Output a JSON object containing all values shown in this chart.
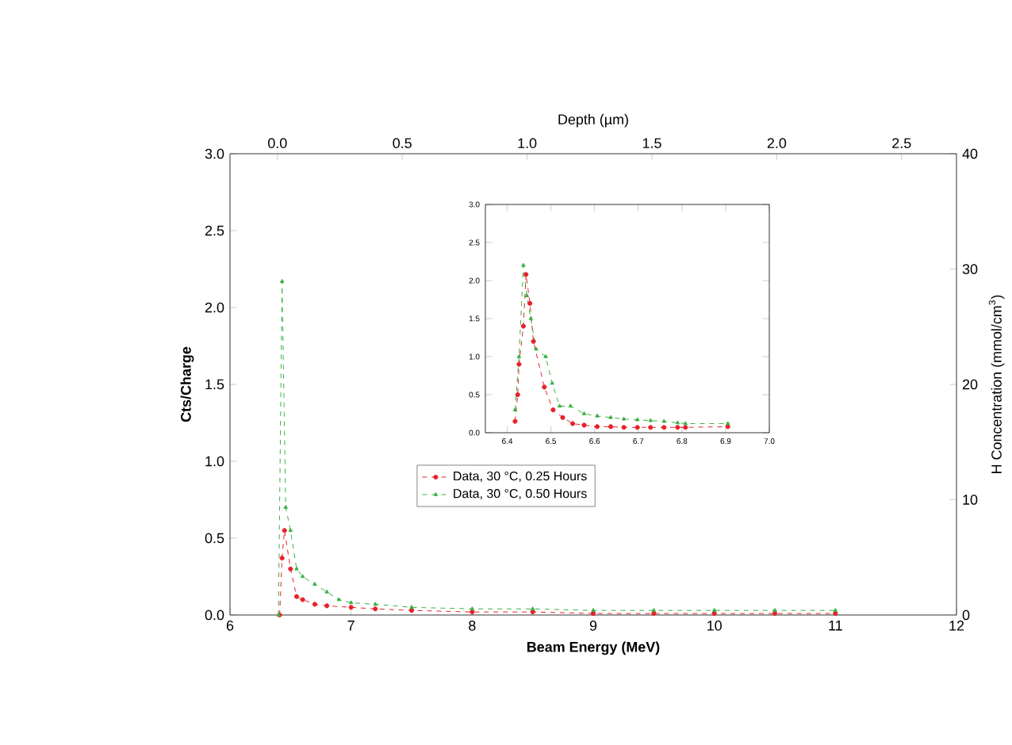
{
  "chart_data": [
    {
      "type": "line",
      "xlabel": "Beam Energy (MeV)",
      "ylabel": "Cts/Charge",
      "y2label": "H Concentration (mmol/cm$^{3}$)",
      "x2label": "Depth (µm)",
      "xlim": [
        6,
        12
      ],
      "xticks": [
        6,
        7,
        8,
        9,
        10,
        11,
        12
      ],
      "ylim": [
        0,
        3
      ],
      "yticks": [
        {
          "value": 0,
          "label": "0.0"
        },
        {
          "value": 0.5,
          "label": "0.5"
        },
        {
          "value": 1,
          "label": "1.0"
        },
        {
          "value": 1.5,
          "label": "1.5"
        },
        {
          "value": 2,
          "label": "2.0"
        },
        {
          "value": 2.5,
          "label": "2.5"
        },
        {
          "value": 3,
          "label": "3.0"
        }
      ],
      "y2lim": [
        0,
        40
      ],
      "y2ticks": [
        0,
        10,
        20,
        30,
        40
      ],
      "x2lim": [
        -0.19,
        2.72
      ],
      "x2ticks": [
        {
          "value": 0,
          "label": "0.0"
        },
        {
          "value": 0.5,
          "label": "0.5"
        },
        {
          "value": 1,
          "label": "1.0"
        },
        {
          "value": 1.5,
          "label": "1.5"
        },
        {
          "value": 2,
          "label": "2.0"
        },
        {
          "value": 2.5,
          "label": "2.5"
        }
      ],
      "legend": "center",
      "line_style": "dashed",
      "series": [
        {
          "name": "Data, 30 °C, 0.25 Hours",
          "color": "#e8202a",
          "marker": "circle",
          "x": [
            6.41,
            6.43,
            6.45,
            6.5,
            6.55,
            6.6,
            6.7,
            6.8,
            7.0,
            7.2,
            7.5,
            8.0,
            8.5,
            9.0,
            9.5,
            10.0,
            10.5,
            11.0
          ],
          "values": [
            0.0,
            0.37,
            0.55,
            0.3,
            0.12,
            0.1,
            0.07,
            0.06,
            0.05,
            0.04,
            0.03,
            0.02,
            0.02,
            0.01,
            0.01,
            0.01,
            0.01,
            0.01
          ]
        },
        {
          "name": "Data, 30 °C, 0.50 Hours",
          "color": "#3cb043",
          "marker": "triangle",
          "x": [
            6.4,
            6.43,
            6.46,
            6.5,
            6.55,
            6.6,
            6.7,
            6.8,
            6.9,
            7.0,
            7.2,
            7.5,
            8.0,
            8.5,
            9.0,
            9.5,
            10.0,
            10.5,
            11.0
          ],
          "values": [
            0.0,
            2.17,
            0.7,
            0.55,
            0.3,
            0.25,
            0.2,
            0.15,
            0.1,
            0.08,
            0.07,
            0.05,
            0.04,
            0.04,
            0.03,
            0.03,
            0.03,
            0.03,
            0.03
          ]
        }
      ]
    },
    {
      "type": "line",
      "xlim": [
        6.35,
        7.0
      ],
      "xticks": [
        6.4,
        6.5,
        6.6,
        6.7,
        6.8,
        6.9,
        {
          "value": 7.0,
          "label": "7.0"
        }
      ],
      "ylim": [
        0,
        3
      ],
      "yticks": [
        {
          "value": 0,
          "label": "0.0"
        },
        {
          "value": 0.5,
          "label": "0.5"
        },
        {
          "value": 1,
          "label": "1.0"
        },
        {
          "value": 1.5,
          "label": "1.5"
        },
        {
          "value": 2,
          "label": "2.0"
        },
        {
          "value": 2.5,
          "label": "2.5"
        },
        {
          "value": 3,
          "label": "3.0"
        }
      ],
      "line_style": "dashed",
      "series": [
        {
          "color": "#e8202a",
          "marker": "circle",
          "x": [
            6.418,
            6.424,
            6.427,
            6.437,
            6.443,
            6.452,
            6.46,
            6.485,
            6.505,
            6.527,
            6.55,
            6.576,
            6.606,
            6.637,
            6.667,
            6.698,
            6.728,
            6.759,
            6.79,
            6.808,
            6.905
          ],
          "values": [
            0.15,
            0.5,
            0.9,
            1.4,
            2.08,
            1.7,
            1.2,
            0.6,
            0.3,
            0.2,
            0.12,
            0.1,
            0.08,
            0.08,
            0.07,
            0.07,
            0.07,
            0.07,
            0.07,
            0.07,
            0.08
          ]
        },
        {
          "color": "#3cb043",
          "marker": "triangle",
          "x": [
            6.418,
            6.427,
            6.437,
            6.445,
            6.454,
            6.466,
            6.488,
            6.503,
            6.52,
            6.545,
            6.576,
            6.606,
            6.637,
            6.667,
            6.698,
            6.728,
            6.759,
            6.79,
            6.808,
            6.905
          ],
          "values": [
            0.3,
            1.0,
            2.2,
            1.8,
            1.5,
            1.1,
            1.0,
            0.65,
            0.35,
            0.35,
            0.25,
            0.22,
            0.2,
            0.18,
            0.17,
            0.16,
            0.15,
            0.13,
            0.12,
            0.12
          ]
        }
      ]
    }
  ]
}
